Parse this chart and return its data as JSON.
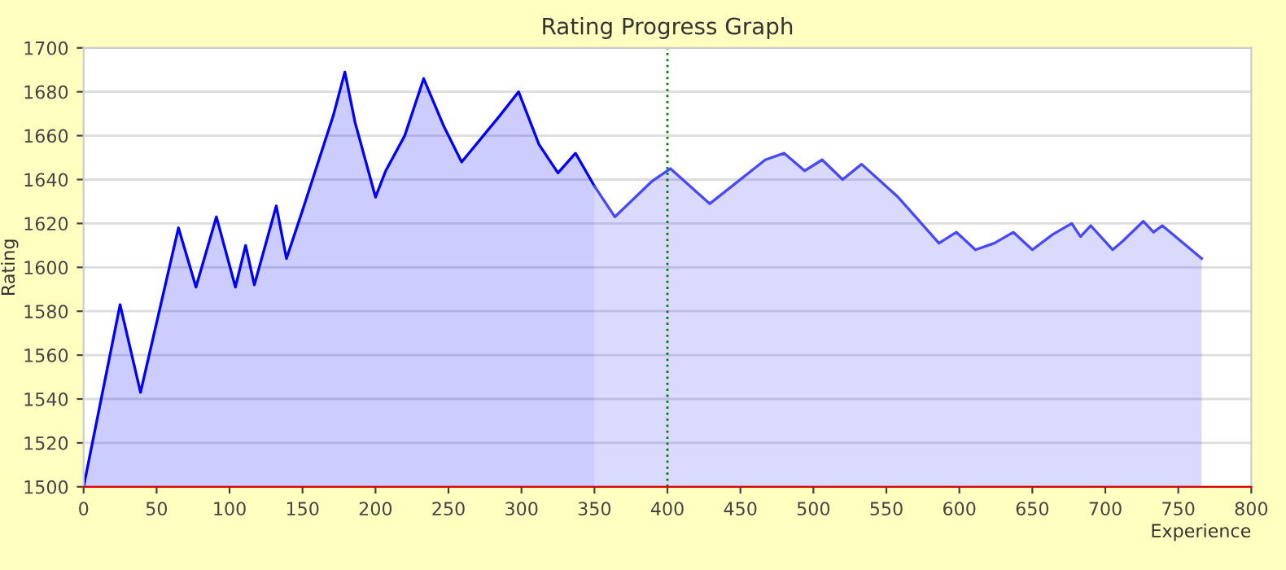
{
  "chart_data": {
    "type": "area",
    "title": "Rating Progress Graph",
    "xlabel": "Experience",
    "ylabel": "Rating",
    "xlim": [
      0,
      800
    ],
    "ylim": [
      1500,
      1700
    ],
    "xticks": [
      0,
      50,
      100,
      150,
      200,
      250,
      300,
      350,
      400,
      450,
      500,
      550,
      600,
      650,
      700,
      750,
      800
    ],
    "yticks": [
      1500,
      1520,
      1540,
      1560,
      1580,
      1600,
      1620,
      1640,
      1660,
      1680,
      1700
    ],
    "grid": "y",
    "legend": false,
    "line_style": "solid",
    "marker": "none",
    "series": [
      {
        "color": "#0000ff",
        "x": [
          0,
          25,
          39,
          65,
          77,
          91,
          104,
          111,
          117,
          132,
          139,
          151,
          171,
          179,
          186,
          200,
          207,
          220,
          233,
          247,
          259,
          285,
          298,
          312,
          325,
          337,
          350
        ],
        "values": [
          1500,
          1583,
          1543,
          1618,
          1591,
          1623,
          1591,
          1610,
          1592,
          1628,
          1604,
          1628,
          1669,
          1689,
          1666,
          1632,
          1644,
          1660,
          1686,
          1664,
          1648,
          1669,
          1680,
          1656,
          1643,
          1652,
          1637
        ]
      },
      {
        "color": "#4848ff",
        "x": [
          350,
          364,
          389,
          402,
          429,
          467,
          480,
          494,
          506,
          520,
          533,
          558,
          586,
          598,
          611,
          624,
          637,
          650,
          664,
          677,
          683,
          690,
          705,
          712,
          726,
          733,
          739,
          766
        ],
        "values": [
          1637,
          1623,
          1639,
          1645,
          1629,
          1649,
          1652,
          1644,
          1649,
          1640,
          1647,
          1632,
          1611,
          1616,
          1608,
          1611,
          1616,
          1608,
          1615,
          1620,
          1614,
          1619,
          1608,
          1612,
          1621,
          1616,
          1619,
          1604
        ]
      }
    ],
    "ref_lines": [
      {
        "axis": "x",
        "value": 400,
        "color": "#008000",
        "line_style": "dotted"
      }
    ]
  }
}
